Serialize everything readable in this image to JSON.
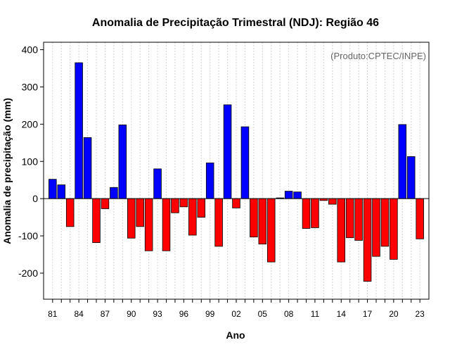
{
  "chart_data": {
    "type": "bar",
    "title": "Anomalia de Precipitação Trimestral (NDJ): Região 46",
    "source_note": "(Produto:CPTEC/INPE)",
    "xlabel": "Ano",
    "ylabel": "Anomalia de precipitação (mm)",
    "ylim": [
      -270,
      420
    ],
    "yticks": [
      -200,
      -100,
      0,
      100,
      200,
      300,
      400
    ],
    "xtick_labels": [
      "81",
      "84",
      "87",
      "90",
      "93",
      "96",
      "99",
      "02",
      "05",
      "08",
      "11",
      "14",
      "17",
      "20",
      "23"
    ],
    "categories": [
      "1981",
      "1982",
      "1983",
      "1984",
      "1985",
      "1986",
      "1987",
      "1988",
      "1989",
      "1990",
      "1991",
      "1992",
      "1993",
      "1994",
      "1995",
      "1996",
      "1997",
      "1998",
      "1999",
      "2000",
      "2001",
      "2002",
      "2003",
      "2004",
      "2005",
      "2006",
      "2007",
      "2008",
      "2009",
      "2010",
      "2011",
      "2012",
      "2013",
      "2014",
      "2015",
      "2016",
      "2017",
      "2018",
      "2019",
      "2020",
      "2021",
      "2022",
      "2023"
    ],
    "values": [
      52,
      37,
      -75,
      365,
      164,
      -118,
      -27,
      30,
      198,
      -106,
      -75,
      -140,
      80,
      -140,
      -38,
      -22,
      -98,
      -50,
      96,
      -128,
      252,
      -25,
      193,
      -103,
      -122,
      -170,
      2,
      20,
      18,
      -80,
      -78,
      -5,
      -15,
      -170,
      -105,
      -112,
      -222,
      -155,
      -128,
      -163,
      199,
      113,
      -108
    ],
    "colors": {
      "positive": "#0000ff",
      "negative": "#ff0000",
      "zero_line": "#000000",
      "grid": "#d3d3d3"
    }
  }
}
